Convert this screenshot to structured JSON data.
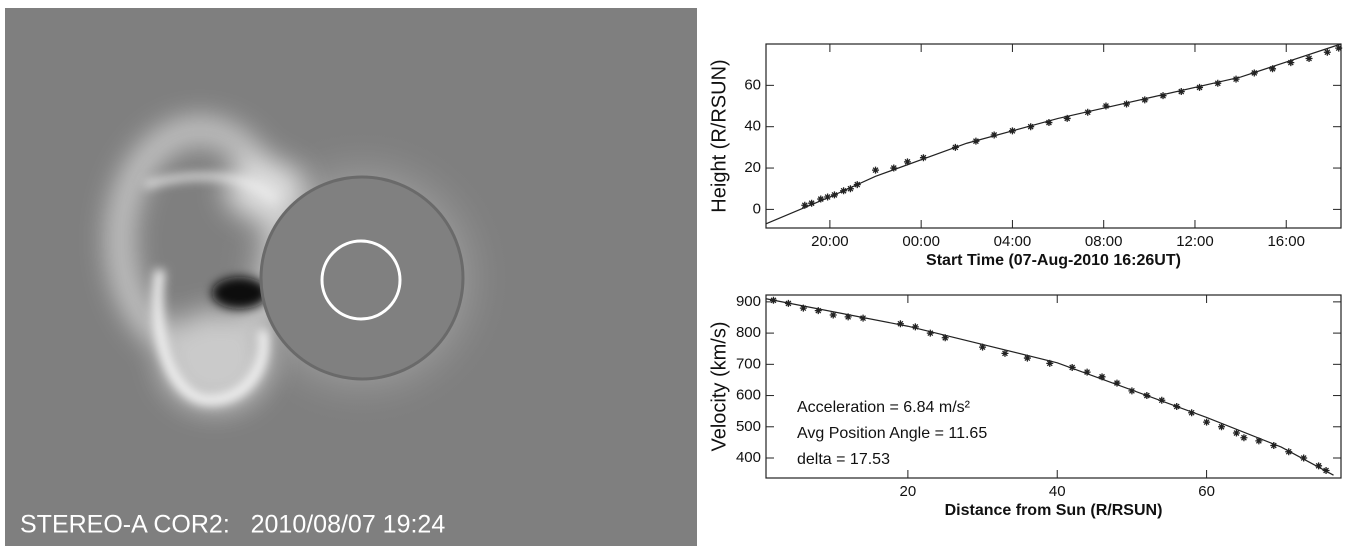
{
  "image": {
    "caption": "STEREO-A COR2:   2010/08/07 19:24"
  },
  "chart_data": [
    {
      "type": "scatter",
      "ylabel": "Height (R/RSUN)",
      "xlabel": "Start Time (07-Aug-2010  16:26UT)",
      "xlim": [
        17.2,
        42.4
      ],
      "xticks": [
        {
          "value": 20,
          "label": "20:00"
        },
        {
          "value": 24,
          "label": "00:00"
        },
        {
          "value": 28,
          "label": "04:00"
        },
        {
          "value": 32,
          "label": "08:00"
        },
        {
          "value": 36,
          "label": "12:00"
        },
        {
          "value": 40,
          "label": "16:00"
        }
      ],
      "ylim": [
        -9,
        80
      ],
      "yticks": [
        0,
        20,
        40,
        60
      ],
      "series": [
        {
          "type": "scatter",
          "color": "#222222",
          "x": [
            18.9,
            19.2,
            19.6,
            19.9,
            20.2,
            20.6,
            20.9,
            21.2,
            22.0,
            22.8,
            23.4,
            24.1,
            25.5,
            26.4,
            27.2,
            28.0,
            28.8,
            29.6,
            30.4,
            31.3,
            32.1,
            33.0,
            33.8,
            34.6,
            35.4,
            36.2,
            37.0,
            37.8,
            38.6,
            39.4,
            40.2,
            41.0,
            41.8,
            42.3
          ],
          "values": [
            2,
            3,
            5,
            6,
            7,
            9,
            10,
            12,
            19,
            20,
            23,
            25,
            30,
            33,
            36,
            38,
            40,
            42,
            44,
            47,
            50,
            51,
            53,
            55,
            57,
            59,
            61,
            63,
            66,
            68,
            71,
            73,
            76,
            78
          ]
        },
        {
          "type": "line",
          "color": "#222222",
          "x": [
            17.2,
            20,
            22,
            26,
            30,
            34,
            38,
            42.4
          ],
          "values": [
            -7,
            6,
            16,
            32,
            44,
            54,
            64,
            80
          ]
        }
      ]
    },
    {
      "type": "scatter",
      "ylabel": "Velocity (km/s)",
      "xlabel": "Distance from Sun (R/RSUN)",
      "xlim": [
        1,
        78
      ],
      "xticks": [
        20,
        40,
        60
      ],
      "ylim": [
        336,
        922
      ],
      "yticks": [
        400,
        500,
        600,
        700,
        800,
        900
      ],
      "annotations": [
        "Acceleration = 6.84 m/s²",
        "Avg Position Angle = 11.65",
        "delta = 17.53"
      ],
      "series": [
        {
          "type": "scatter",
          "color": "#222222",
          "x": [
            2,
            4,
            6,
            8,
            10,
            12,
            14,
            19,
            21,
            23,
            25,
            30,
            33,
            36,
            39,
            42,
            44,
            46,
            48,
            50,
            52,
            54,
            56,
            58,
            60,
            62,
            64,
            65,
            67,
            69,
            71,
            73,
            75,
            76
          ],
          "values": [
            905,
            895,
            880,
            872,
            858,
            852,
            848,
            830,
            820,
            800,
            785,
            755,
            735,
            720,
            703,
            690,
            675,
            660,
            640,
            615,
            600,
            585,
            565,
            545,
            515,
            500,
            480,
            465,
            455,
            440,
            420,
            400,
            375,
            360
          ]
        },
        {
          "type": "line",
          "color": "#222222",
          "x": [
            1,
            20,
            40,
            60,
            70,
            77
          ],
          "values": [
            910,
            822,
            705,
            530,
            435,
            345
          ]
        }
      ]
    }
  ]
}
